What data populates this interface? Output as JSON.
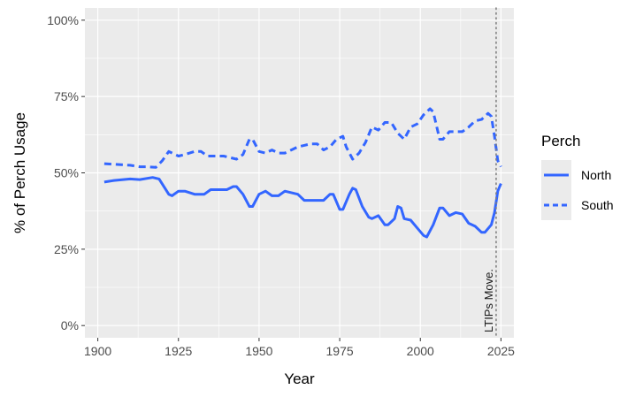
{
  "chart_data": {
    "type": "line",
    "xlabel": "Year",
    "ylabel": "% of Perch Usage",
    "xlim": [
      1896,
      2029
    ],
    "ylim": [
      -4,
      104
    ],
    "x_ticks": [
      1900,
      1925,
      1950,
      1975,
      2000,
      2025
    ],
    "x_tick_labels": [
      "1900",
      "1925",
      "1950",
      "1975",
      "2000",
      "2025"
    ],
    "y_ticks": [
      0,
      25,
      50,
      75,
      100
    ],
    "y_tick_labels": [
      "0%",
      "25%",
      "50%",
      "75%",
      "100%"
    ],
    "grid": true,
    "legend": {
      "title": "Perch",
      "position": "right"
    },
    "series": [
      {
        "name": "North",
        "color": "#3366FF",
        "linestyle": "solid",
        "points": [
          [
            1902,
            47
          ],
          [
            1905,
            47.5
          ],
          [
            1910,
            48
          ],
          [
            1913,
            47.8
          ],
          [
            1917,
            48.5
          ],
          [
            1919,
            48
          ],
          [
            1922,
            43
          ],
          [
            1923,
            42.5
          ],
          [
            1925,
            44
          ],
          [
            1927,
            44
          ],
          [
            1930,
            43
          ],
          [
            1933,
            43
          ],
          [
            1935,
            44.5
          ],
          [
            1937,
            44.5
          ],
          [
            1940,
            44.5
          ],
          [
            1942,
            45.5
          ],
          [
            1943,
            45.5
          ],
          [
            1945,
            43
          ],
          [
            1947,
            39
          ],
          [
            1948,
            39
          ],
          [
            1950,
            43
          ],
          [
            1952,
            44
          ],
          [
            1954,
            42.5
          ],
          [
            1956,
            42.5
          ],
          [
            1958,
            44
          ],
          [
            1960,
            43.5
          ],
          [
            1962,
            43
          ],
          [
            1964,
            41
          ],
          [
            1966,
            41
          ],
          [
            1970,
            41
          ],
          [
            1972,
            43
          ],
          [
            1973,
            43
          ],
          [
            1975,
            38
          ],
          [
            1976,
            38
          ],
          [
            1978,
            43
          ],
          [
            1979,
            45
          ],
          [
            1980,
            44.5
          ],
          [
            1982,
            39
          ],
          [
            1984,
            35.5
          ],
          [
            1985,
            35
          ],
          [
            1987,
            36
          ],
          [
            1989,
            33
          ],
          [
            1990,
            33
          ],
          [
            1992,
            35
          ],
          [
            1993,
            39
          ],
          [
            1994,
            38.5
          ],
          [
            1995,
            35
          ],
          [
            1997,
            34.5
          ],
          [
            1999,
            32
          ],
          [
            2001,
            29.5
          ],
          [
            2002,
            29
          ],
          [
            2004,
            33
          ],
          [
            2006,
            38.5
          ],
          [
            2007,
            38.5
          ],
          [
            2009,
            36
          ],
          [
            2011,
            37
          ],
          [
            2013,
            36.5
          ],
          [
            2015,
            33.5
          ],
          [
            2017,
            32.5
          ],
          [
            2019,
            30.5
          ],
          [
            2020,
            30.5
          ],
          [
            2022,
            33
          ],
          [
            2023,
            37
          ],
          [
            2024,
            44
          ],
          [
            2025,
            46.5
          ]
        ]
      },
      {
        "name": "South",
        "color": "#3366FF",
        "linestyle": "dashed",
        "points": [
          [
            1902,
            53
          ],
          [
            1905,
            52.8
          ],
          [
            1910,
            52.5
          ],
          [
            1913,
            52
          ],
          [
            1915,
            52
          ],
          [
            1918,
            51.8
          ],
          [
            1920,
            54
          ],
          [
            1922,
            57
          ],
          [
            1925,
            55.5
          ],
          [
            1927,
            56
          ],
          [
            1930,
            57
          ],
          [
            1932,
            57
          ],
          [
            1934,
            55.5
          ],
          [
            1937,
            55.5
          ],
          [
            1939,
            55.5
          ],
          [
            1941,
            55
          ],
          [
            1943,
            54.5
          ],
          [
            1945,
            56
          ],
          [
            1947,
            61
          ],
          [
            1948,
            61
          ],
          [
            1950,
            57
          ],
          [
            1952,
            56.5
          ],
          [
            1954,
            57.5
          ],
          [
            1956,
            56.5
          ],
          [
            1958,
            56.5
          ],
          [
            1960,
            57.5
          ],
          [
            1962,
            58.5
          ],
          [
            1964,
            59
          ],
          [
            1966,
            59.5
          ],
          [
            1968,
            59.5
          ],
          [
            1970,
            57.5
          ],
          [
            1972,
            58.5
          ],
          [
            1974,
            61
          ],
          [
            1976,
            62
          ],
          [
            1977,
            58.5
          ],
          [
            1979,
            54.5
          ],
          [
            1981,
            56.5
          ],
          [
            1983,
            60
          ],
          [
            1985,
            65
          ],
          [
            1987,
            64
          ],
          [
            1989,
            66.5
          ],
          [
            1991,
            66.5
          ],
          [
            1993,
            63
          ],
          [
            1995,
            61
          ],
          [
            1997,
            65
          ],
          [
            1999,
            66
          ],
          [
            2001,
            69
          ],
          [
            2003,
            71
          ],
          [
            2004,
            70
          ],
          [
            2006,
            61
          ],
          [
            2007,
            61
          ],
          [
            2009,
            63.5
          ],
          [
            2011,
            63.5
          ],
          [
            2013,
            63.5
          ],
          [
            2015,
            65
          ],
          [
            2017,
            67
          ],
          [
            2019,
            67.5
          ],
          [
            2021,
            69.5
          ],
          [
            2022,
            68.5
          ],
          [
            2023,
            62
          ],
          [
            2024,
            54
          ],
          [
            2025,
            52
          ]
        ]
      }
    ],
    "annotations": [
      {
        "text": "LTIPs Move.",
        "x": 2023.5,
        "type": "vline",
        "linestyle": "dotted",
        "color": "#808080"
      }
    ]
  }
}
